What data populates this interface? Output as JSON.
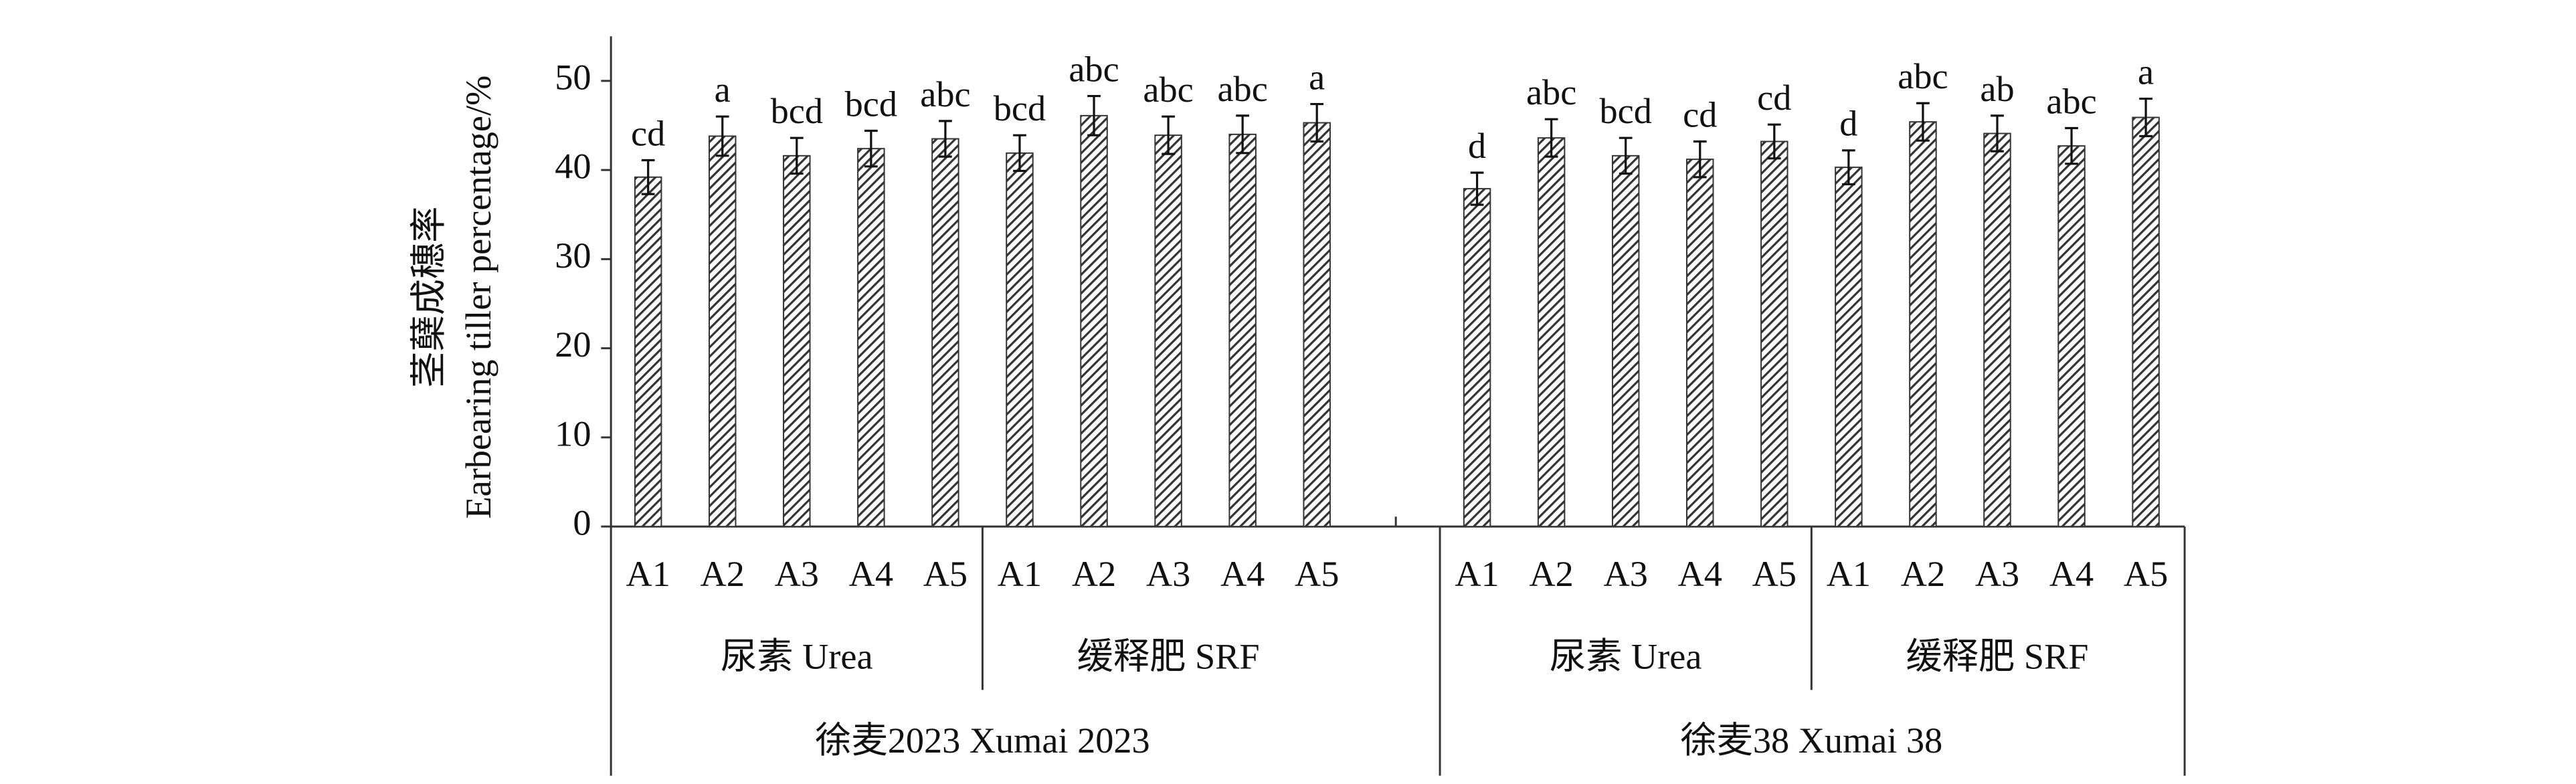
{
  "chart_data": {
    "type": "bar",
    "y_label": [
      "茎蘖成穗率",
      "Earbearing tiller percentage/%"
    ],
    "ylim": [
      0,
      55
    ],
    "yticks": [
      0,
      10,
      20,
      30,
      40,
      50
    ],
    "color": "#333333",
    "groups": [
      {
        "name": "徐麦2023 Xumai 2023",
        "subgroups": [
          {
            "name": "尿素 Urea",
            "categories": [
              "A1",
              "A2",
              "A3",
              "A4",
              "A5"
            ],
            "values": [
              39.2,
              43.8,
              41.6,
              42.4,
              43.5
            ],
            "errors": [
              1.9,
              2.2,
              2.0,
              2.0,
              2.0
            ],
            "letters": [
              "cd",
              "a",
              "bcd",
              "bcd",
              "abc"
            ]
          },
          {
            "name": "缓释肥 SRF",
            "categories": [
              "A1",
              "A2",
              "A3",
              "A4",
              "A5"
            ],
            "values": [
              41.9,
              46.1,
              43.9,
              44.0,
              45.3
            ],
            "errors": [
              2.0,
              2.2,
              2.1,
              2.1,
              2.1
            ],
            "letters": [
              "bcd",
              "abc",
              "abc",
              "abc",
              "a"
            ]
          }
        ]
      },
      {
        "name": "徐麦38 Xumai 38",
        "subgroups": [
          {
            "name": "尿素 Urea",
            "categories": [
              "A1",
              "A2",
              "A3",
              "A4",
              "A5"
            ],
            "values": [
              37.9,
              43.6,
              41.6,
              41.2,
              43.2
            ],
            "errors": [
              1.8,
              2.1,
              2.0,
              2.0,
              1.9
            ],
            "letters": [
              "d",
              "abc",
              "bcd",
              "cd",
              "cd"
            ]
          },
          {
            "name": "缓释肥 SRF",
            "categories": [
              "A1",
              "A2",
              "A3",
              "A4",
              "A5"
            ],
            "values": [
              40.3,
              45.4,
              44.1,
              42.7,
              45.9
            ],
            "errors": [
              1.9,
              2.1,
              2.0,
              2.0,
              2.1
            ],
            "letters": [
              "d",
              "abc",
              "ab",
              "abc",
              "a"
            ]
          }
        ]
      }
    ]
  }
}
